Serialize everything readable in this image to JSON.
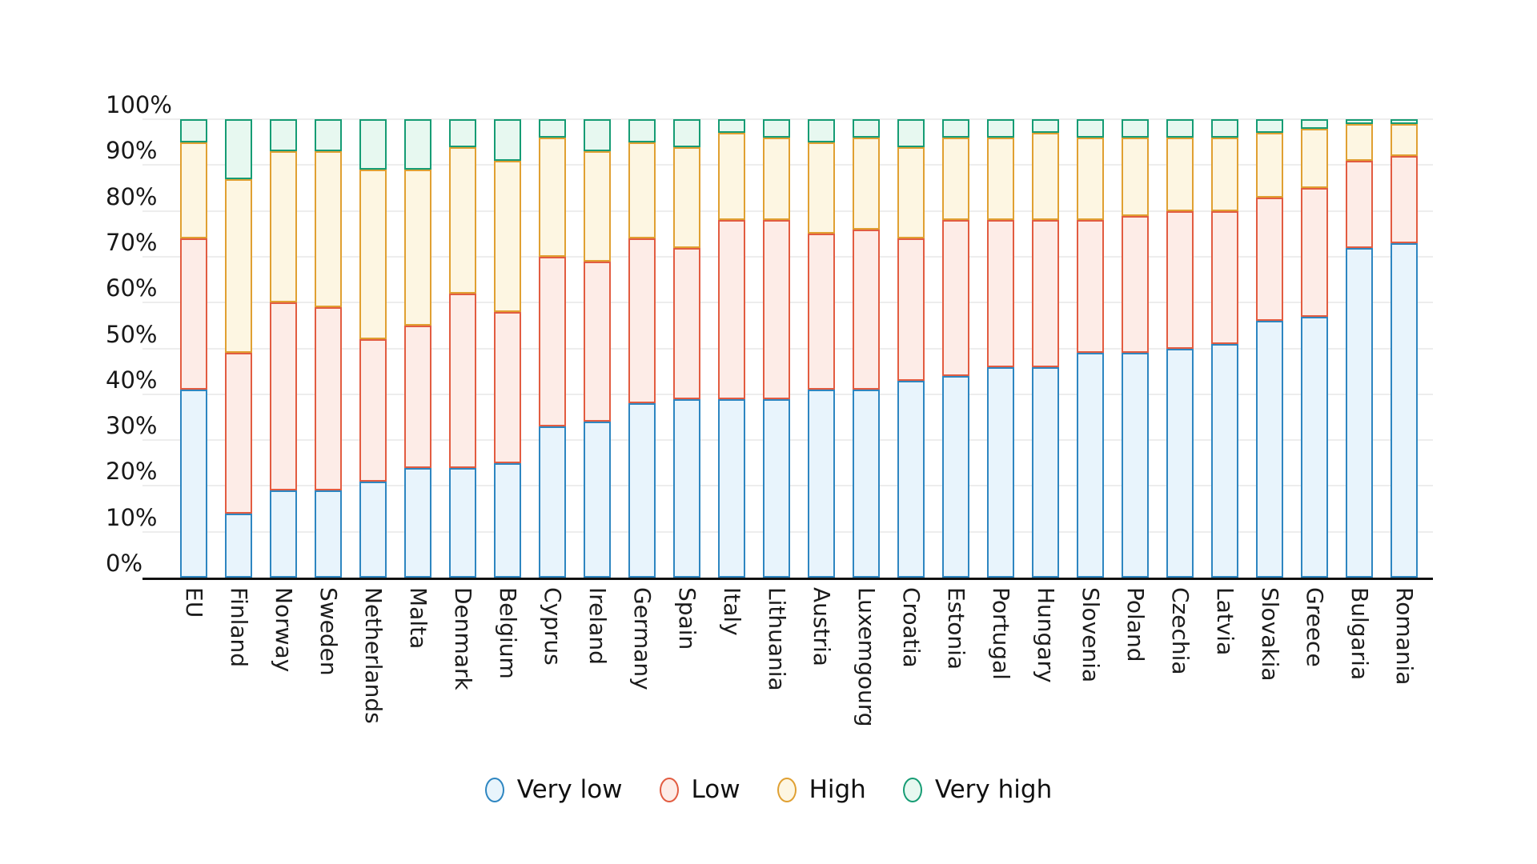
{
  "chart_data": {
    "type": "bar",
    "stacked": true,
    "orientation": "vertical",
    "title": "",
    "xlabel": "",
    "ylabel": "",
    "ylim": [
      0,
      100
    ],
    "grid": true,
    "legend_position": "bottom",
    "yticks": [
      "0%",
      "10%",
      "20%",
      "30%",
      "40%",
      "50%",
      "60%",
      "70%",
      "80%",
      "90%",
      "100%"
    ],
    "categories": [
      "EU",
      "Finland",
      "Norway",
      "Sweden",
      "Netherlands",
      "Malta",
      "Denmark",
      "Belgium",
      "Cyprus",
      "Ireland",
      "Germany",
      "Spain",
      "Italy",
      "Lithuania",
      "Austria",
      "Luxemgourg",
      "Croatia",
      "Estonia",
      "Portugal",
      "Hungary",
      "Slovenia",
      "Poland",
      "Czechia",
      "Latvia",
      "Slovakia",
      "Greece",
      "Bulgaria",
      "Romania"
    ],
    "series": [
      {
        "name": "Very low",
        "stroke": "#2e86c1",
        "fill": "#e8f4fc",
        "values": [
          41,
          14,
          19,
          19,
          21,
          24,
          24,
          25,
          33,
          34,
          38,
          39,
          39,
          39,
          41,
          41,
          43,
          44,
          46,
          46,
          49,
          49,
          50,
          51,
          56,
          57,
          72,
          73
        ]
      },
      {
        "name": "Low",
        "stroke": "#e25c41",
        "fill": "#fdece7",
        "values": [
          33,
          35,
          41,
          40,
          31,
          31,
          38,
          33,
          37,
          35,
          36,
          33,
          39,
          39,
          34,
          35,
          31,
          34,
          32,
          32,
          29,
          30,
          30,
          29,
          27,
          28,
          19,
          19
        ]
      },
      {
        "name": "High",
        "stroke": "#e0a032",
        "fill": "#fdf6e2",
        "values": [
          21,
          38,
          33,
          34,
          37,
          34,
          32,
          33,
          26,
          24,
          21,
          22,
          19,
          18,
          20,
          20,
          20,
          18,
          18,
          19,
          18,
          17,
          16,
          16,
          14,
          13,
          8,
          7
        ]
      },
      {
        "name": "Very high",
        "stroke": "#169c74",
        "fill": "#e7f8f0",
        "values": [
          5,
          13,
          7,
          7,
          11,
          11,
          6,
          9,
          4,
          7,
          5,
          6,
          3,
          4,
          5,
          4,
          6,
          4,
          4,
          3,
          4,
          4,
          4,
          4,
          3,
          2,
          1,
          1
        ]
      }
    ]
  }
}
